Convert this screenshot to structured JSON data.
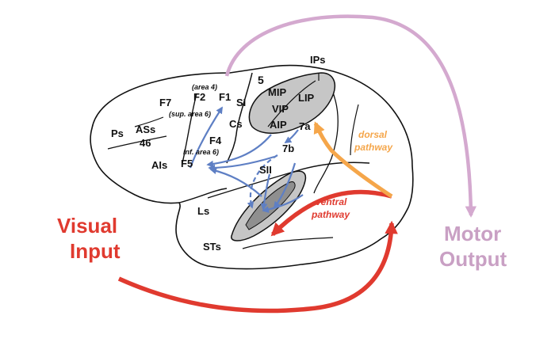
{
  "labels": {
    "ips": "IPs",
    "area5": "5",
    "mip": "MIP",
    "lip": "LIP",
    "vip": "VIP",
    "aip": "AIP",
    "area7a": "7a",
    "area7b": "7b",
    "area4": "(area 4)",
    "f1": "F1",
    "f2": "F2",
    "f7": "F7",
    "sup_area6": "(sup. area 6)",
    "si": "SI",
    "cs": "Cs",
    "f4": "F4",
    "inf_area6": "inf. area 6)",
    "f5": "F5",
    "ps": "Ps",
    "ass": "ASs",
    "area46": "46",
    "ais": "AIs",
    "sii": "SII",
    "ls": "Ls",
    "sts": "STs"
  },
  "annotations": {
    "dorsal": "dorsal pathway",
    "dorsal_line1": "dorsal",
    "dorsal_line2": "pathway",
    "ventral_line1": "ventral",
    "ventral_line2": "pathway",
    "visual_line1": "Visual",
    "visual_line2": "Input",
    "motor_line1": "Motor",
    "motor_line2": "Output"
  },
  "colors": {
    "visual_input": "#e03a2f",
    "ventral": "#e03a2f",
    "dorsal": "#f5a64a",
    "motor_output": "#d4a9cf",
    "internal_arrows": "#5e7fc4",
    "shaded_area": "#c6c6c6",
    "outline": "#111111"
  }
}
